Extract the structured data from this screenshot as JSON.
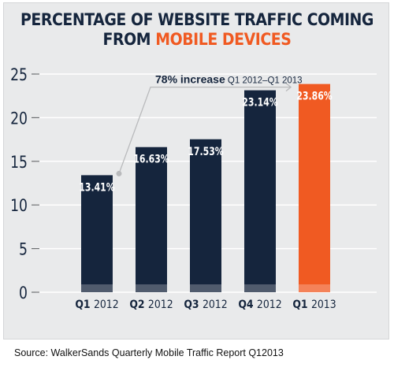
{
  "header": {
    "title_line1": "PERCENTAGE OF WEBSITE TRAFFIC COMING",
    "title_line2_prefix": "FROM ",
    "title_line2_accent": "MOBILE DEVICES"
  },
  "annotation": {
    "bold": "78% increase",
    "rest": " Q1 2012–Q1 2013"
  },
  "source": "Source:  WalkerSands Quarterly Mobile Traffic Report Q12013",
  "colors": {
    "bar": "#15253d",
    "highlight": "#f05a22",
    "accent_text": "#f05a22",
    "axis_text": "#15253d"
  },
  "chart_data": {
    "type": "bar",
    "title": "PERCENTAGE OF WEBSITE TRAFFIC COMING FROM MOBILE DEVICES",
    "xlabel": "",
    "ylabel": "",
    "ylim": [
      0,
      25
    ],
    "yticks": [
      0,
      5,
      10,
      15,
      20,
      25
    ],
    "grid": true,
    "categories": [
      {
        "quarter": "Q1",
        "year": "2012"
      },
      {
        "quarter": "Q2",
        "year": "2012"
      },
      {
        "quarter": "Q3",
        "year": "2012"
      },
      {
        "quarter": "Q4",
        "year": "2012"
      },
      {
        "quarter": "Q1",
        "year": "2013"
      }
    ],
    "values": [
      13.41,
      16.63,
      17.53,
      23.14,
      23.86
    ],
    "data_labels": [
      "13.41%",
      "16.63%",
      "17.53%",
      "23.14%",
      "23.86%"
    ],
    "highlight_index": 4
  }
}
